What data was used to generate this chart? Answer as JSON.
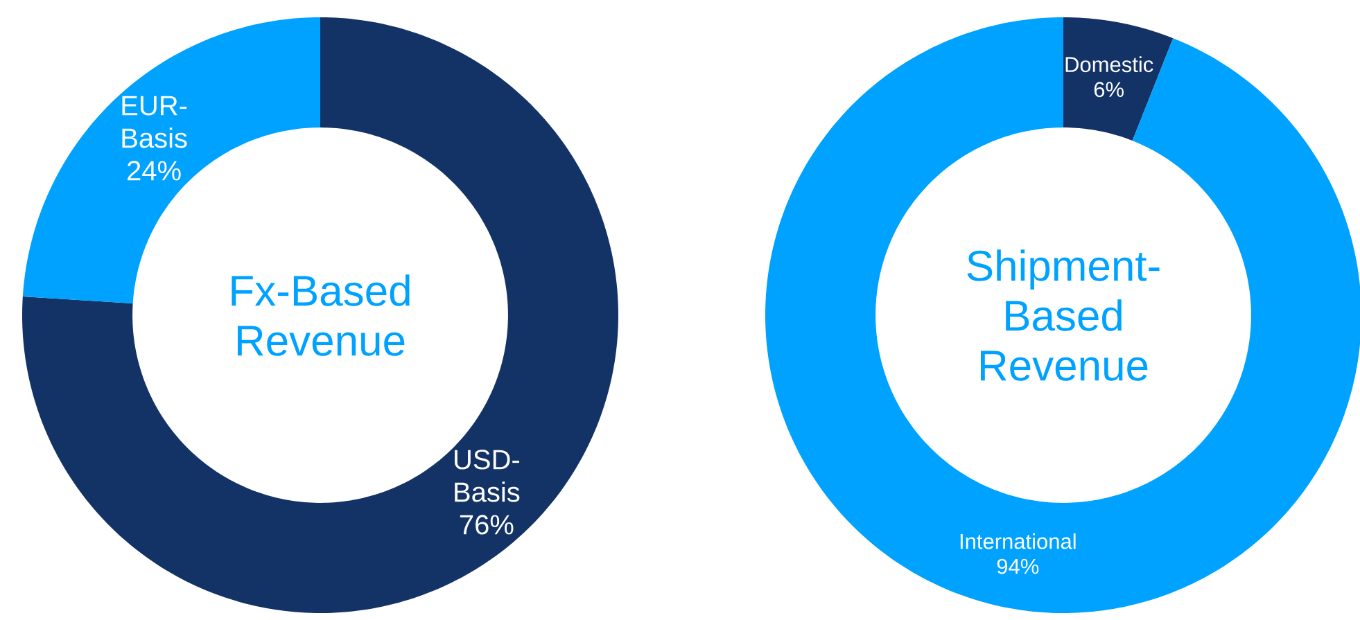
{
  "chart_data": [
    {
      "type": "donut",
      "title": "Fx-Based Revenue",
      "categories": [
        "USD-Basis",
        "EUR-Basis"
      ],
      "values": [
        76,
        24
      ],
      "colors": [
        "#133366",
        "#00a2ff"
      ],
      "value_labels": [
        "76%",
        "24%"
      ]
    },
    {
      "type": "donut",
      "title": "Shipment-Based Revenue",
      "categories": [
        "Domestic",
        "International"
      ],
      "values": [
        6,
        94
      ],
      "colors": [
        "#133366",
        "#00a2ff"
      ],
      "value_labels": [
        "6%",
        "94%"
      ]
    }
  ]
}
